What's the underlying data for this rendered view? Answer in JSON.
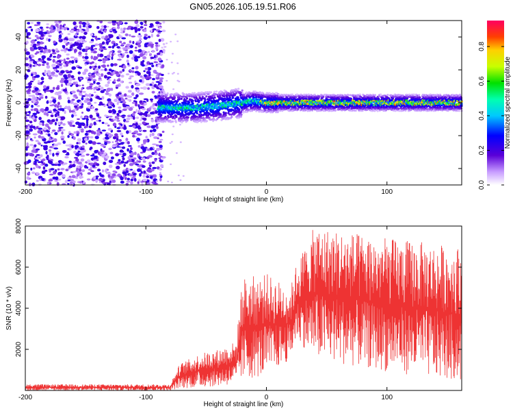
{
  "title": "GN05.2026.105.19.51.R06",
  "chart_data": [
    {
      "type": "heatmap",
      "name": "spectrogram",
      "xlabel": "Height of straight line (km)",
      "ylabel": "Frequency (Hz)",
      "xlim": [
        -200,
        162
      ],
      "ylim": [
        -50,
        50
      ],
      "xticks": [
        -200,
        -100,
        0,
        100
      ],
      "yticks": [
        -40,
        -20,
        0,
        20,
        40
      ],
      "colorbar": {
        "label": "Normalized spectral amplitude",
        "range": [
          0,
          0.95
        ],
        "ticks": [
          0.0,
          0.2,
          0.4,
          0.6,
          0.8
        ]
      },
      "regions": [
        {
          "description": "broadband noise",
          "x_range": [
            -200,
            -85
          ],
          "y_range": [
            -50,
            50
          ],
          "amplitude": 0.15
        },
        {
          "description": "signal band",
          "x_range": [
            -90,
            162
          ],
          "center_hz": [
            [
              -90,
              -3
            ],
            [
              -60,
              -3
            ],
            [
              -40,
              -2
            ],
            [
              -10,
              1
            ],
            [
              0,
              0
            ],
            [
              50,
              0
            ],
            [
              100,
              0
            ],
            [
              162,
              0
            ]
          ],
          "peak_amplitude": 0.95
        }
      ]
    },
    {
      "type": "line",
      "name": "snr",
      "xlabel": "Height of straight line (km)",
      "ylabel": "SNR (10 * v/v)",
      "xlim": [
        -200,
        162
      ],
      "ylim": [
        0,
        8000
      ],
      "xticks": [
        -200,
        -100,
        0,
        100
      ],
      "yticks": [
        2000,
        4000,
        6000,
        8000
      ],
      "color": "#ee3333",
      "envelope": [
        {
          "x": -200,
          "low": 0,
          "high": 300
        },
        {
          "x": -80,
          "low": 0,
          "high": 300
        },
        {
          "x": -72,
          "low": 100,
          "high": 1300
        },
        {
          "x": -55,
          "low": 150,
          "high": 1800
        },
        {
          "x": -40,
          "low": 200,
          "high": 2000
        },
        {
          "x": -25,
          "low": 300,
          "high": 2400
        },
        {
          "x": -20,
          "low": 500,
          "high": 5500
        },
        {
          "x": 0,
          "low": 700,
          "high": 5700
        },
        {
          "x": 20,
          "low": 1500,
          "high": 5000
        },
        {
          "x": 25,
          "low": 2500,
          "high": 6200
        },
        {
          "x": 40,
          "low": 1500,
          "high": 8000
        },
        {
          "x": 90,
          "low": 1000,
          "high": 7500
        },
        {
          "x": 162,
          "low": 400,
          "high": 7000
        }
      ]
    }
  ]
}
